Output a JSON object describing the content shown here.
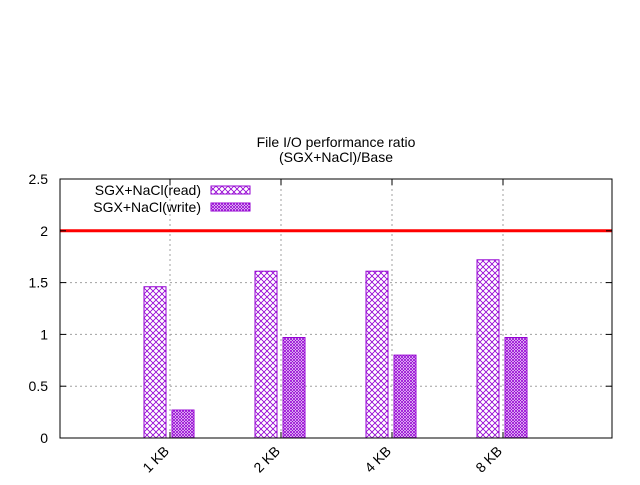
{
  "chart_data": {
    "type": "bar",
    "title": "File I/O performance ratio",
    "subtitle": "(SGX+NaCl)/Base",
    "xlabel": "",
    "ylabel": "",
    "categories": [
      "1 KB",
      "2 KB",
      "4 KB",
      "8 KB"
    ],
    "series": [
      {
        "name": "SGX+NaCl(read)",
        "values": [
          1.46,
          1.61,
          1.61,
          1.72
        ],
        "pattern": "crosshatch",
        "color": "#9400d3"
      },
      {
        "name": "SGX+NaCl(write)",
        "values": [
          0.27,
          0.97,
          0.8,
          0.97
        ],
        "pattern": "dense-crosshatch",
        "color": "#9400d3"
      }
    ],
    "ylim": [
      0,
      2.5
    ],
    "yticks": [
      "0",
      "0.5",
      "1",
      "1.5",
      "2",
      "2.5"
    ],
    "reference_line": {
      "y": 2,
      "color": "#ff0000"
    },
    "grid": true,
    "legend_position": "top-left"
  }
}
